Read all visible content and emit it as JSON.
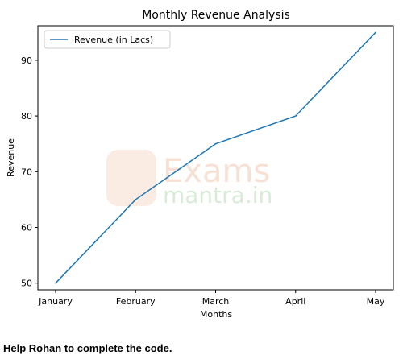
{
  "chart_data": {
    "type": "line",
    "title": "Monthly Revenue Analysis",
    "xlabel": "Months",
    "ylabel": "Revenue",
    "categories": [
      "January",
      "February",
      "March",
      "April",
      "May"
    ],
    "series": [
      {
        "name": "Revenue (in Lacs)",
        "values": [
          50,
          65,
          75,
          80,
          95
        ],
        "color": "#1f77b4"
      }
    ],
    "y_ticks": [
      "50",
      "60",
      "70",
      "80",
      "90"
    ],
    "ylim": [
      48.8,
      96.2
    ],
    "grid": false,
    "legend_placement": "top-left"
  },
  "watermark": {
    "text_line1": "Exams",
    "text_line2": "mantra.in"
  },
  "caption": "Help Rohan to complete the code."
}
